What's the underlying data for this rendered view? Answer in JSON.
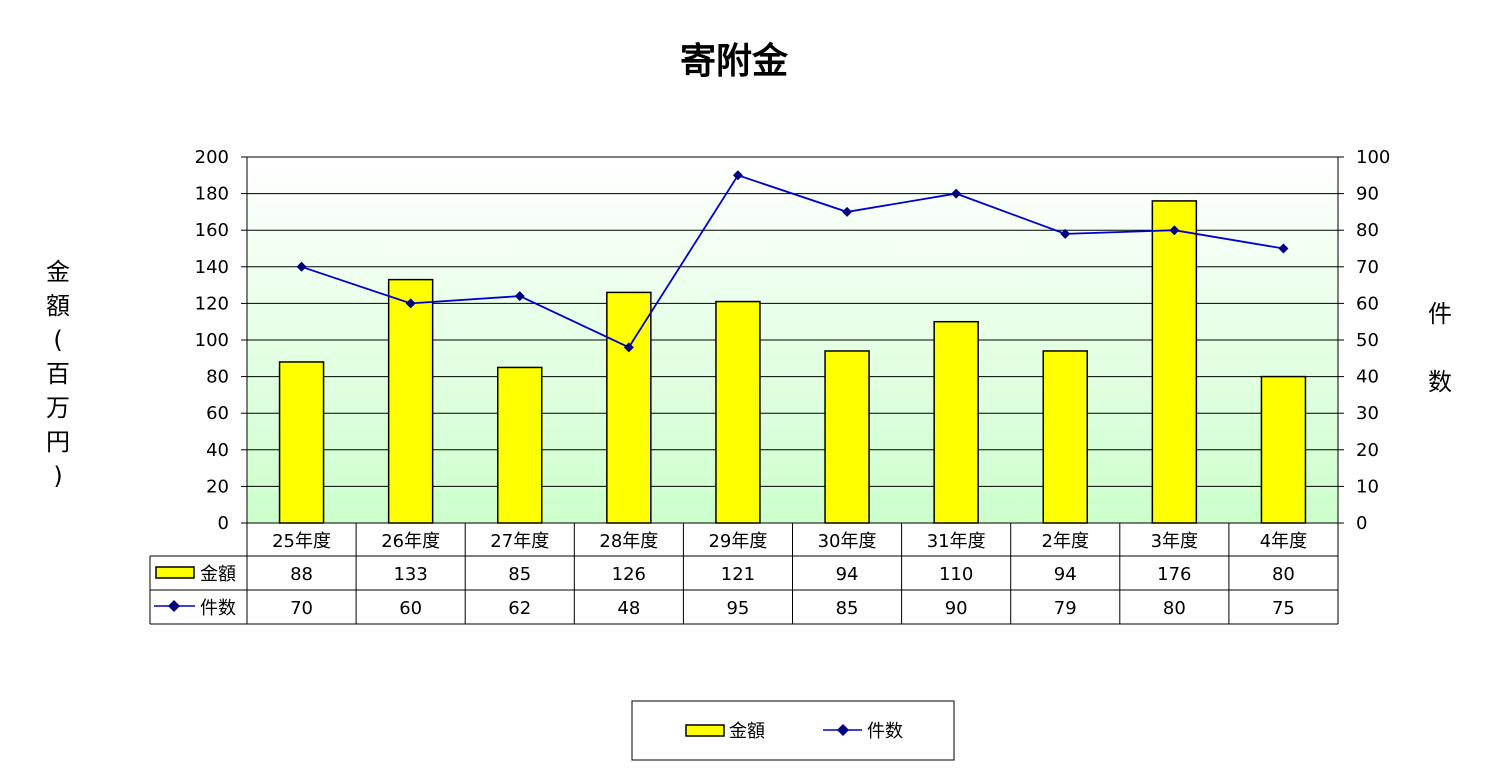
{
  "chart_data": {
    "type": "bar",
    "title": "寄附金",
    "categories": [
      "25年度",
      "26年度",
      "27年度",
      "28年度",
      "29年度",
      "30年度",
      "31年度",
      "2年度",
      "3年度",
      "4年度"
    ],
    "series": [
      {
        "name": "金額",
        "type": "bar",
        "axis": "left",
        "color": "#ffff00",
        "values": [
          88,
          133,
          85,
          126,
          121,
          94,
          110,
          94,
          176,
          80
        ]
      },
      {
        "name": "件数",
        "type": "line",
        "axis": "right",
        "color": "#0000cc",
        "marker_color": "#000080",
        "values": [
          70,
          60,
          62,
          48,
          95,
          85,
          90,
          79,
          80,
          75
        ]
      }
    ],
    "ylabel": "金額(百万円)",
    "y2label": "件数",
    "ylim": [
      0,
      200
    ],
    "y2lim": [
      0,
      100
    ],
    "yticks": [
      0,
      20,
      40,
      60,
      80,
      100,
      120,
      140,
      160,
      180,
      200
    ],
    "y2ticks": [
      0,
      10,
      20,
      30,
      40,
      50,
      60,
      70,
      80,
      90,
      100
    ],
    "grid": true,
    "data_table": true,
    "legend": "bottom-center",
    "plot_background": {
      "top": "#ffffff",
      "bottom": "#ccffcc"
    }
  }
}
